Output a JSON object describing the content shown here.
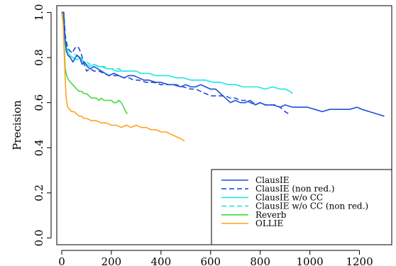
{
  "chart_data": {
    "type": "line",
    "title": "",
    "xlabel": "",
    "ylabel": "Precision",
    "xlim": [
      -20,
      1330
    ],
    "ylim": [
      -0.03,
      1.03
    ],
    "x_ticks": [
      0,
      200,
      400,
      600,
      800,
      1000,
      1200
    ],
    "y_ticks": [
      0.0,
      0.2,
      0.4,
      0.6,
      0.8,
      1.0
    ],
    "y_tick_labels": [
      "0.0",
      "0.2",
      "0.4",
      "0.6",
      "0.8",
      "1.0"
    ],
    "grid": false,
    "legend_position": "bottom-right",
    "series": [
      {
        "name": "ClausIE",
        "color": "#1f4fd6",
        "dash": "solid",
        "points": [
          [
            0,
            1.0
          ],
          [
            8,
            1.0
          ],
          [
            12,
            0.9
          ],
          [
            18,
            0.83
          ],
          [
            25,
            0.81
          ],
          [
            35,
            0.8
          ],
          [
            45,
            0.78
          ],
          [
            55,
            0.8
          ],
          [
            62,
            0.81
          ],
          [
            72,
            0.8
          ],
          [
            82,
            0.77
          ],
          [
            92,
            0.78
          ],
          [
            102,
            0.76
          ],
          [
            115,
            0.75
          ],
          [
            130,
            0.76
          ],
          [
            145,
            0.75
          ],
          [
            160,
            0.74
          ],
          [
            175,
            0.73
          ],
          [
            190,
            0.72
          ],
          [
            210,
            0.73
          ],
          [
            230,
            0.72
          ],
          [
            250,
            0.71
          ],
          [
            270,
            0.72
          ],
          [
            290,
            0.72
          ],
          [
            310,
            0.71
          ],
          [
            330,
            0.7
          ],
          [
            350,
            0.7
          ],
          [
            380,
            0.69
          ],
          [
            400,
            0.69
          ],
          [
            430,
            0.68
          ],
          [
            450,
            0.68
          ],
          [
            480,
            0.67
          ],
          [
            500,
            0.68
          ],
          [
            520,
            0.67
          ],
          [
            540,
            0.67
          ],
          [
            560,
            0.68
          ],
          [
            580,
            0.67
          ],
          [
            600,
            0.66
          ],
          [
            620,
            0.66
          ],
          [
            640,
            0.64
          ],
          [
            660,
            0.62
          ],
          [
            680,
            0.6
          ],
          [
            700,
            0.61
          ],
          [
            720,
            0.6
          ],
          [
            740,
            0.6
          ],
          [
            760,
            0.61
          ],
          [
            780,
            0.59
          ],
          [
            800,
            0.6
          ],
          [
            820,
            0.59
          ],
          [
            850,
            0.59
          ],
          [
            880,
            0.58
          ],
          [
            900,
            0.59
          ],
          [
            930,
            0.58
          ],
          [
            960,
            0.58
          ],
          [
            990,
            0.58
          ],
          [
            1020,
            0.57
          ],
          [
            1050,
            0.56
          ],
          [
            1080,
            0.57
          ],
          [
            1100,
            0.57
          ],
          [
            1130,
            0.57
          ],
          [
            1160,
            0.57
          ],
          [
            1190,
            0.58
          ],
          [
            1210,
            0.57
          ],
          [
            1240,
            0.56
          ],
          [
            1270,
            0.55
          ],
          [
            1300,
            0.54
          ]
        ]
      },
      {
        "name": "ClausIE (non red.)",
        "color": "#1f4fd6",
        "dash": "dashed",
        "points": [
          [
            0,
            1.0
          ],
          [
            8,
            1.0
          ],
          [
            14,
            0.9
          ],
          [
            22,
            0.84
          ],
          [
            32,
            0.83
          ],
          [
            42,
            0.82
          ],
          [
            52,
            0.84
          ],
          [
            62,
            0.85
          ],
          [
            70,
            0.84
          ],
          [
            80,
            0.81
          ],
          [
            90,
            0.77
          ],
          [
            100,
            0.74
          ],
          [
            115,
            0.75
          ],
          [
            130,
            0.74
          ],
          [
            150,
            0.74
          ],
          [
            170,
            0.73
          ],
          [
            190,
            0.72
          ],
          [
            210,
            0.72
          ],
          [
            230,
            0.72
          ],
          [
            250,
            0.71
          ],
          [
            270,
            0.71
          ],
          [
            290,
            0.7
          ],
          [
            310,
            0.7
          ],
          [
            340,
            0.69
          ],
          [
            370,
            0.69
          ],
          [
            400,
            0.68
          ],
          [
            430,
            0.68
          ],
          [
            460,
            0.68
          ],
          [
            490,
            0.67
          ],
          [
            520,
            0.66
          ],
          [
            540,
            0.66
          ],
          [
            560,
            0.65
          ],
          [
            580,
            0.64
          ],
          [
            600,
            0.63
          ],
          [
            620,
            0.63
          ],
          [
            640,
            0.63
          ],
          [
            660,
            0.63
          ],
          [
            680,
            0.62
          ],
          [
            700,
            0.62
          ],
          [
            720,
            0.61
          ],
          [
            740,
            0.61
          ],
          [
            760,
            0.6
          ],
          [
            780,
            0.59
          ],
          [
            800,
            0.6
          ],
          [
            820,
            0.59
          ],
          [
            840,
            0.59
          ],
          [
            860,
            0.59
          ],
          [
            880,
            0.58
          ],
          [
            900,
            0.56
          ],
          [
            915,
            0.55
          ]
        ]
      },
      {
        "name": "ClausIE w/o CC",
        "color": "#22e5e5",
        "dash": "solid",
        "points": [
          [
            0,
            1.0
          ],
          [
            8,
            1.0
          ],
          [
            14,
            0.88
          ],
          [
            22,
            0.83
          ],
          [
            32,
            0.81
          ],
          [
            45,
            0.8
          ],
          [
            60,
            0.79
          ],
          [
            75,
            0.8
          ],
          [
            90,
            0.78
          ],
          [
            100,
            0.77
          ],
          [
            115,
            0.76
          ],
          [
            130,
            0.77
          ],
          [
            145,
            0.76
          ],
          [
            160,
            0.76
          ],
          [
            180,
            0.75
          ],
          [
            200,
            0.75
          ],
          [
            220,
            0.74
          ],
          [
            240,
            0.74
          ],
          [
            260,
            0.74
          ],
          [
            280,
            0.74
          ],
          [
            300,
            0.74
          ],
          [
            320,
            0.73
          ],
          [
            350,
            0.73
          ],
          [
            380,
            0.72
          ],
          [
            400,
            0.72
          ],
          [
            430,
            0.72
          ],
          [
            460,
            0.71
          ],
          [
            490,
            0.71
          ],
          [
            520,
            0.7
          ],
          [
            550,
            0.7
          ],
          [
            580,
            0.7
          ],
          [
            610,
            0.69
          ],
          [
            640,
            0.69
          ],
          [
            670,
            0.68
          ],
          [
            700,
            0.68
          ],
          [
            730,
            0.67
          ],
          [
            760,
            0.67
          ],
          [
            790,
            0.67
          ],
          [
            820,
            0.66
          ],
          [
            850,
            0.67
          ],
          [
            880,
            0.66
          ],
          [
            900,
            0.66
          ],
          [
            920,
            0.65
          ],
          [
            930,
            0.64
          ]
        ]
      },
      {
        "name": "ClausIE w/o CC (non red.)",
        "color": "#22e5e5",
        "dash": "dashed",
        "points": [
          [
            0,
            1.0
          ],
          [
            8,
            1.0
          ],
          [
            14,
            0.9
          ],
          [
            22,
            0.86
          ],
          [
            32,
            0.83
          ],
          [
            45,
            0.82
          ],
          [
            58,
            0.81
          ],
          [
            70,
            0.8
          ],
          [
            85,
            0.78
          ],
          [
            100,
            0.78
          ],
          [
            115,
            0.77
          ],
          [
            130,
            0.77
          ],
          [
            150,
            0.76
          ],
          [
            170,
            0.76
          ],
          [
            190,
            0.75
          ],
          [
            210,
            0.75
          ],
          [
            230,
            0.75
          ],
          [
            250,
            0.74
          ],
          [
            270,
            0.74
          ]
        ]
      },
      {
        "name": "Reverb",
        "color": "#3ddc3d",
        "dash": "solid",
        "points": [
          [
            0,
            1.0
          ],
          [
            6,
            1.0
          ],
          [
            10,
            0.85
          ],
          [
            14,
            0.75
          ],
          [
            20,
            0.72
          ],
          [
            28,
            0.7
          ],
          [
            36,
            0.69
          ],
          [
            44,
            0.68
          ],
          [
            52,
            0.67
          ],
          [
            60,
            0.66
          ],
          [
            70,
            0.65
          ],
          [
            80,
            0.65
          ],
          [
            90,
            0.64
          ],
          [
            100,
            0.64
          ],
          [
            110,
            0.63
          ],
          [
            120,
            0.62
          ],
          [
            130,
            0.62
          ],
          [
            140,
            0.62
          ],
          [
            150,
            0.61
          ],
          [
            160,
            0.62
          ],
          [
            170,
            0.61
          ],
          [
            180,
            0.61
          ],
          [
            190,
            0.61
          ],
          [
            200,
            0.61
          ],
          [
            210,
            0.6
          ],
          [
            220,
            0.6
          ],
          [
            230,
            0.61
          ],
          [
            240,
            0.6
          ],
          [
            250,
            0.58
          ],
          [
            258,
            0.56
          ],
          [
            265,
            0.55
          ]
        ]
      },
      {
        "name": "OLLIE",
        "color": "#ffa31a",
        "dash": "solid",
        "points": [
          [
            0,
            1.0
          ],
          [
            6,
            0.95
          ],
          [
            10,
            0.82
          ],
          [
            14,
            0.7
          ],
          [
            18,
            0.62
          ],
          [
            24,
            0.58
          ],
          [
            32,
            0.57
          ],
          [
            40,
            0.56
          ],
          [
            50,
            0.56
          ],
          [
            60,
            0.55
          ],
          [
            70,
            0.54
          ],
          [
            80,
            0.54
          ],
          [
            90,
            0.53
          ],
          [
            100,
            0.53
          ],
          [
            120,
            0.52
          ],
          [
            140,
            0.52
          ],
          [
            160,
            0.51
          ],
          [
            180,
            0.51
          ],
          [
            200,
            0.5
          ],
          [
            220,
            0.5
          ],
          [
            240,
            0.49
          ],
          [
            260,
            0.5
          ],
          [
            280,
            0.49
          ],
          [
            300,
            0.5
          ],
          [
            320,
            0.49
          ],
          [
            340,
            0.49
          ],
          [
            360,
            0.48
          ],
          [
            380,
            0.48
          ],
          [
            400,
            0.47
          ],
          [
            420,
            0.47
          ],
          [
            440,
            0.46
          ],
          [
            460,
            0.45
          ],
          [
            480,
            0.44
          ],
          [
            495,
            0.43
          ]
        ]
      }
    ]
  }
}
